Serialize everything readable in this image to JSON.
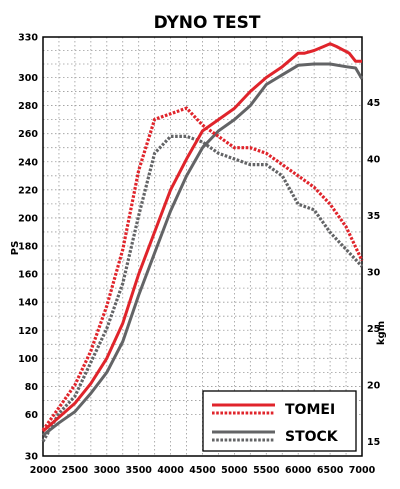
{
  "chart_data": {
    "type": "line",
    "title": "DYNO TEST",
    "xlabel": "",
    "ylabel_left": "PS",
    "ylabel_right": "kgm",
    "xlim": [
      2000,
      7000
    ],
    "ylim_left": [
      30,
      330
    ],
    "ylim_right": [
      10,
      55
    ],
    "grid": true,
    "legend_position": "bottom-right",
    "x_ticks": [
      "2000",
      "2500",
      "3000",
      "3500",
      "4000",
      "4500",
      "5000",
      "5500",
      "6000",
      "6500",
      "7000"
    ],
    "y_left_ticks": [
      "30",
      "60",
      "80",
      "100",
      "120",
      "140",
      "160",
      "180",
      "200",
      "220",
      "240",
      "260",
      "280",
      "300",
      "330"
    ],
    "y_right_ticks": [
      "15",
      "20",
      "25",
      "30",
      "35",
      "40",
      "45"
    ],
    "colors": {
      "tomei": "#e0242b",
      "stock": "#636466"
    },
    "legend": [
      "TOMEI",
      "STOCK"
    ],
    "series": [
      {
        "name": "TOMEI",
        "metric": "power",
        "axis": "left",
        "style": "solid",
        "color": "#e0242b",
        "x": [
          2000,
          2250,
          2500,
          2750,
          3000,
          3250,
          3500,
          3750,
          4000,
          4250,
          4500,
          4750,
          5000,
          5250,
          5500,
          5750,
          6000,
          6100,
          6250,
          6400,
          6500,
          6600,
          6800,
          6900,
          7000
        ],
        "y": [
          48,
          58,
          68,
          82,
          100,
          125,
          160,
          190,
          220,
          242,
          262,
          270,
          278,
          290,
          300,
          308,
          318,
          318,
          320,
          323,
          325,
          323,
          318,
          312,
          312
        ]
      },
      {
        "name": "STOCK",
        "metric": "power",
        "axis": "left",
        "style": "solid",
        "color": "#636466",
        "x": [
          2000,
          2250,
          2500,
          2750,
          3000,
          3250,
          3500,
          3750,
          4000,
          4250,
          4500,
          4750,
          5000,
          5250,
          5500,
          5750,
          6000,
          6250,
          6500,
          6750,
          6900,
          7000
        ],
        "y": [
          45,
          54,
          62,
          75,
          90,
          112,
          145,
          175,
          205,
          230,
          250,
          262,
          270,
          280,
          295,
          302,
          309,
          310,
          310,
          308,
          307,
          299
        ]
      },
      {
        "name": "TOMEI",
        "metric": "torque",
        "axis": "right",
        "style": "dotted",
        "color": "#e0242b",
        "x": [
          2000,
          2250,
          2500,
          2750,
          3000,
          3250,
          3500,
          3750,
          4000,
          4250,
          4500,
          4750,
          5000,
          5250,
          5500,
          5750,
          6000,
          6250,
          6500,
          6750,
          7000
        ],
        "y": [
          16,
          18,
          20,
          23,
          27,
          32,
          39,
          43.5,
          44,
          44.5,
          43,
          42,
          41,
          41,
          40.5,
          39.5,
          38.5,
          37.5,
          36,
          34,
          31
        ]
      },
      {
        "name": "STOCK",
        "metric": "torque",
        "axis": "right",
        "style": "dotted",
        "color": "#636466",
        "x": [
          2000,
          2250,
          2500,
          2750,
          3000,
          3250,
          3500,
          3750,
          4000,
          4250,
          4500,
          4750,
          5000,
          5250,
          5500,
          5750,
          6000,
          6250,
          6500,
          6750,
          7000
        ],
        "y": [
          15,
          17.5,
          19,
          22,
          25,
          29,
          35,
          40.5,
          42,
          42,
          41.5,
          40.5,
          40,
          39.5,
          39.5,
          38.5,
          36,
          35.5,
          33.5,
          32,
          30.5
        ]
      }
    ]
  }
}
